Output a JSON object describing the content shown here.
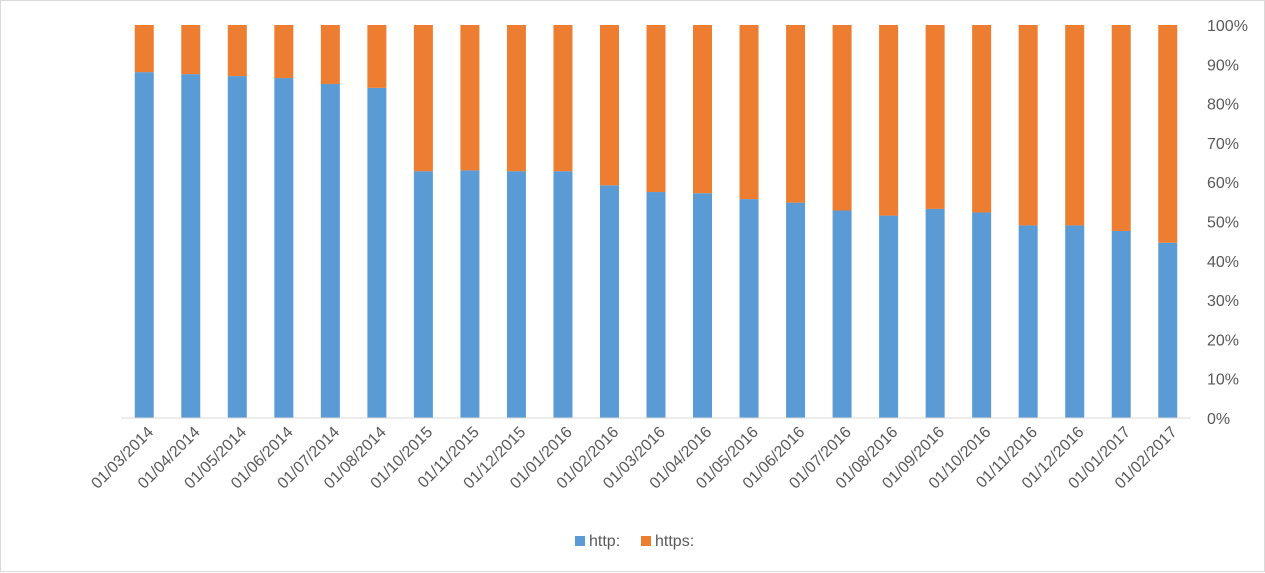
{
  "chart_data": {
    "type": "bar",
    "stacked": "percent",
    "categories": [
      "01/03/2014",
      "01/04/2014",
      "01/05/2014",
      "01/06/2014",
      "01/07/2014",
      "01/08/2014",
      "01/10/2015",
      "01/11/2015",
      "01/12/2015",
      "01/01/2016",
      "01/02/2016",
      "01/03/2016",
      "01/04/2016",
      "01/05/2016",
      "01/06/2016",
      "01/07/2016",
      "01/08/2016",
      "01/09/2016",
      "01/10/2016",
      "01/11/2016",
      "01/12/2016",
      "01/01/2017",
      "01/02/2017"
    ],
    "series": [
      {
        "name": "http:",
        "color": "#5b9bd5",
        "values": [
          88,
          87.5,
          87,
          86.5,
          85,
          84,
          62.8,
          63,
          62.8,
          62.8,
          59.2,
          57.5,
          57.2,
          55.7,
          54.8,
          52.8,
          51.5,
          53.2,
          52.3,
          49,
          49,
          47.6,
          44.6
        ]
      },
      {
        "name": "https:",
        "color": "#ed7d31",
        "values": [
          12,
          12.5,
          13,
          13.5,
          15,
          16,
          37.2,
          37,
          37.2,
          37.2,
          40.8,
          42.5,
          42.8,
          44.3,
          45.2,
          47.2,
          48.5,
          46.8,
          47.7,
          51,
          51,
          52.4,
          55.4
        ]
      }
    ],
    "yticks": [
      "0%",
      "10%",
      "20%",
      "30%",
      "40%",
      "50%",
      "60%",
      "70%",
      "80%",
      "90%",
      "100%"
    ],
    "ylim": [
      0,
      100
    ],
    "yaxis_position": "right",
    "grid": false,
    "legend": "bottom",
    "title": "",
    "xlabel": "",
    "ylabel": ""
  }
}
